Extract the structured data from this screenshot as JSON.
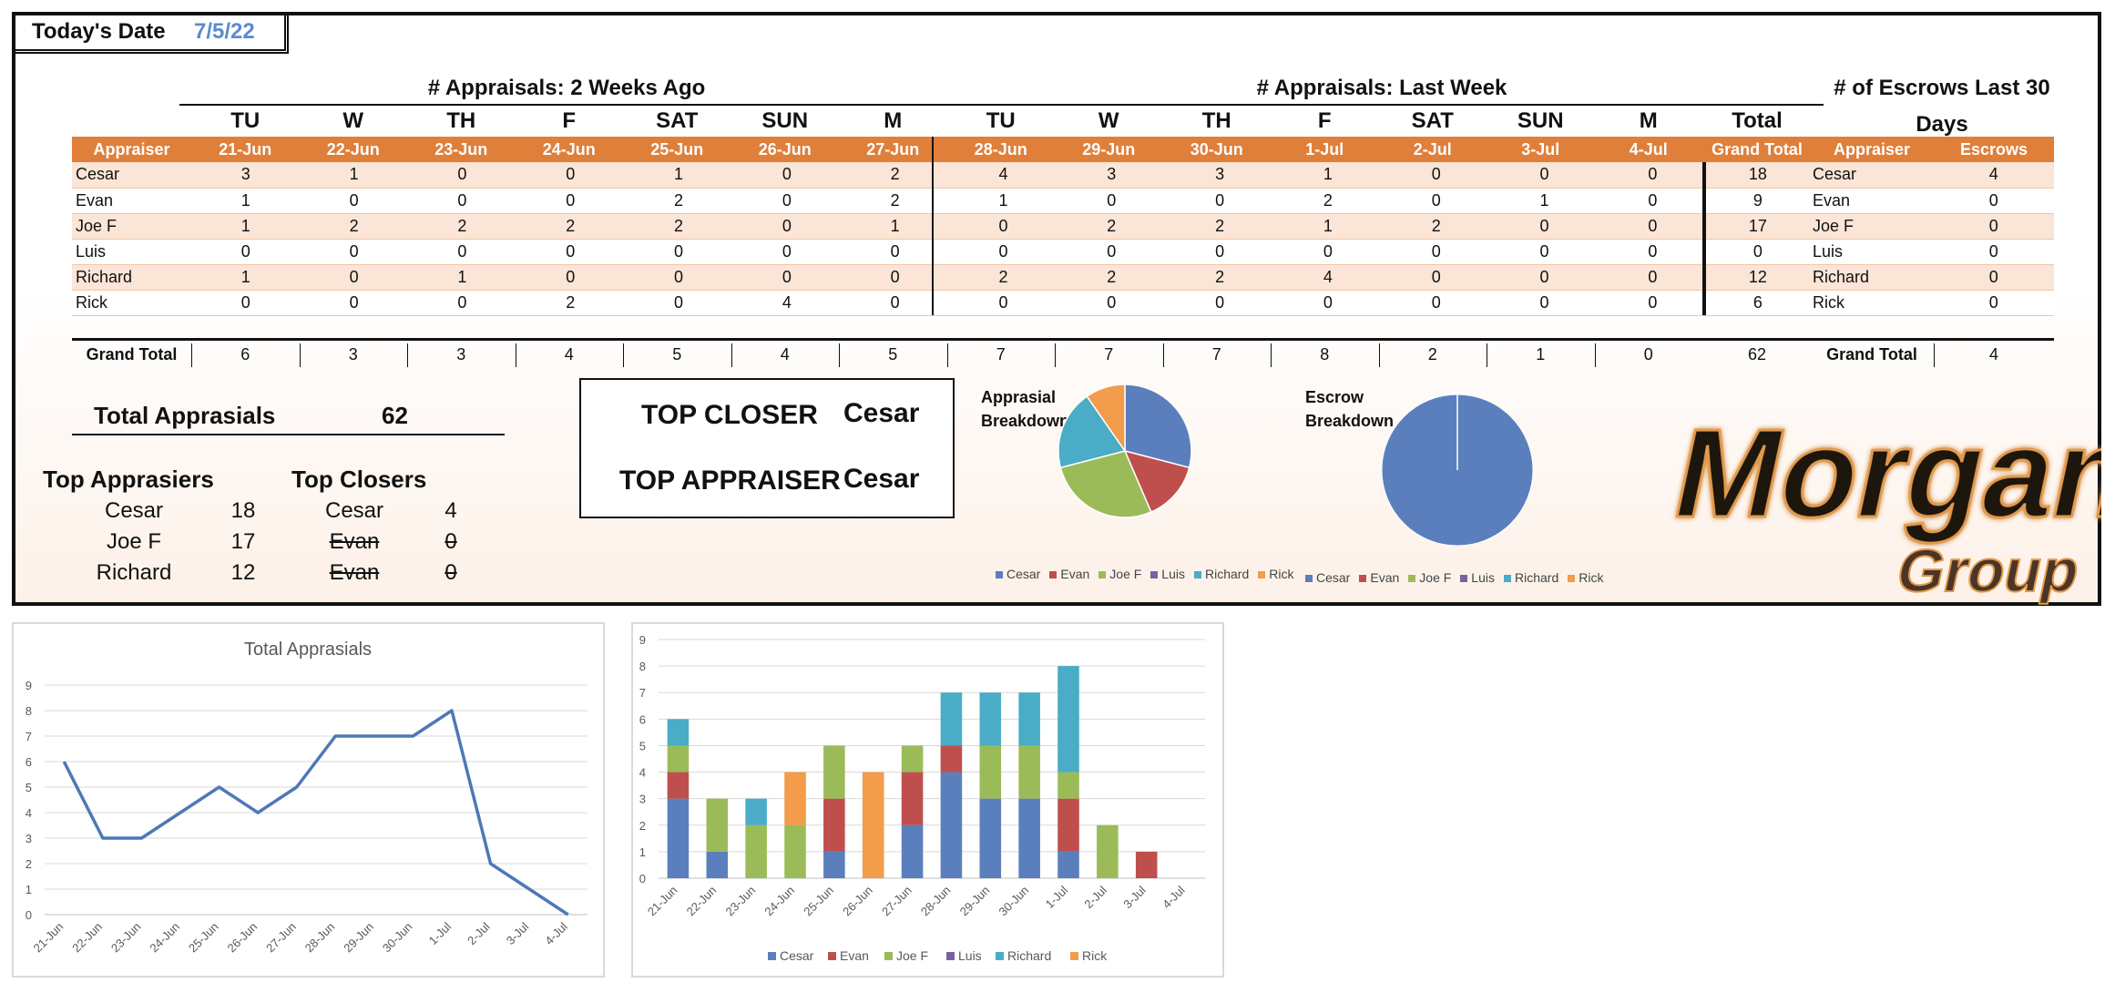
{
  "header": {
    "date_label": "Today's Date",
    "date_value": "7/5/22"
  },
  "sections": {
    "two_weeks": "# Appraisals: 2 Weeks Ago",
    "last_week": "# Appraisals: Last Week",
    "escrows": "# of Escrows Last 30 Days"
  },
  "days": [
    "TU",
    "W",
    "TH",
    "F",
    "SAT",
    "SUN",
    "M",
    "TU",
    "W",
    "TH",
    "F",
    "SAT",
    "SUN",
    "M"
  ],
  "total_label": "Total",
  "header_row": {
    "appraiser": "Appraiser",
    "dates": [
      "21-Jun",
      "22-Jun",
      "23-Jun",
      "24-Jun",
      "25-Jun",
      "26-Jun",
      "27-Jun",
      "28-Jun",
      "29-Jun",
      "30-Jun",
      "1-Jul",
      "2-Jul",
      "3-Jul",
      "4-Jul"
    ],
    "grand_total": "Grand Total",
    "escrow_appraiser": "Appraiser",
    "escrows": "Escrows"
  },
  "rows": [
    {
      "name": "Cesar",
      "values": [
        3,
        1,
        0,
        0,
        1,
        0,
        2,
        4,
        3,
        3,
        1,
        0,
        0,
        0
      ],
      "total": 18,
      "escrow_name": "Cesar",
      "escrows": 4
    },
    {
      "name": "Evan",
      "values": [
        1,
        0,
        0,
        0,
        2,
        0,
        2,
        1,
        0,
        0,
        2,
        0,
        1,
        0
      ],
      "total": 9,
      "escrow_name": "Evan",
      "escrows": 0
    },
    {
      "name": "Joe F",
      "values": [
        1,
        2,
        2,
        2,
        2,
        0,
        1,
        0,
        2,
        2,
        1,
        2,
        0,
        0
      ],
      "total": 17,
      "escrow_name": "Joe F",
      "escrows": 0
    },
    {
      "name": "Luis",
      "values": [
        0,
        0,
        0,
        0,
        0,
        0,
        0,
        0,
        0,
        0,
        0,
        0,
        0,
        0
      ],
      "total": 0,
      "escrow_name": "Luis",
      "escrows": 0
    },
    {
      "name": "Richard",
      "values": [
        1,
        0,
        1,
        0,
        0,
        0,
        0,
        2,
        2,
        2,
        4,
        0,
        0,
        0
      ],
      "total": 12,
      "escrow_name": "Richard",
      "escrows": 0
    },
    {
      "name": "Rick",
      "values": [
        0,
        0,
        0,
        2,
        0,
        4,
        0,
        0,
        0,
        0,
        0,
        0,
        0,
        0
      ],
      "total": 6,
      "escrow_name": "Rick",
      "escrows": 0
    }
  ],
  "grand_total": {
    "label": "Grand Total",
    "values": [
      6,
      3,
      3,
      4,
      5,
      4,
      5,
      7,
      7,
      7,
      8,
      2,
      1,
      0
    ],
    "total": 62,
    "escrow_label": "Grand Total",
    "escrows": 4
  },
  "summary": {
    "total_label": "Total Apprasials",
    "total_value": "62",
    "top_appraisers_title": "Top Apprasiers",
    "top_appraisers": [
      {
        "name": "Cesar",
        "value": "18"
      },
      {
        "name": "Joe F",
        "value": "17"
      },
      {
        "name": "Richard",
        "value": "12"
      }
    ],
    "top_closers_title": "Top Closers",
    "top_closers": [
      {
        "name": "Cesar",
        "value": "4"
      },
      {
        "name": "Evan",
        "value": "0"
      },
      {
        "name": "Evan",
        "value": "0"
      }
    ]
  },
  "top_box": {
    "closer_label": "TOP CLOSER",
    "closer_value": "Cesar",
    "appraiser_label": "TOP APPRAISER",
    "appraiser_value": "Cesar"
  },
  "pies": {
    "appraisal_title_1": "Apprasial",
    "appraisal_title_2": "Breakdown",
    "escrow_title_1": "Escrow",
    "escrow_title_2": "Breakdown"
  },
  "logo": {
    "line1": "Morgan",
    "line2": "Group"
  },
  "colors": {
    "Cesar": "#5b7fbd",
    "Evan": "#bf4f4d",
    "Joe F": "#9bbb59",
    "Luis": "#7b61a3",
    "Richard": "#4aacc6",
    "Rick": "#f29c4c",
    "header_orange": "#e07f3a",
    "line": "#4e78b5"
  },
  "chart_data": [
    {
      "type": "pie",
      "title": "Apprasial Breakdown",
      "categories": [
        "Cesar",
        "Evan",
        "Joe F",
        "Luis",
        "Richard",
        "Rick"
      ],
      "values": [
        18,
        9,
        17,
        0,
        12,
        6
      ]
    },
    {
      "type": "pie",
      "title": "Escrow Breakdown",
      "categories": [
        "Cesar",
        "Evan",
        "Joe F",
        "Luis",
        "Richard",
        "Rick"
      ],
      "values": [
        4,
        0,
        0,
        0,
        0,
        0
      ]
    },
    {
      "type": "line",
      "title": "Total Apprasials",
      "categories": [
        "21-Jun",
        "22-Jun",
        "23-Jun",
        "24-Jun",
        "25-Jun",
        "26-Jun",
        "27-Jun",
        "28-Jun",
        "29-Jun",
        "30-Jun",
        "1-Jul",
        "2-Jul",
        "3-Jul",
        "4-Jul"
      ],
      "values": [
        6,
        3,
        3,
        4,
        5,
        4,
        5,
        7,
        7,
        7,
        8,
        2,
        1,
        0
      ],
      "ylim": [
        0,
        9
      ]
    },
    {
      "type": "bar",
      "stacked": true,
      "categories": [
        "21-Jun",
        "22-Jun",
        "23-Jun",
        "24-Jun",
        "25-Jun",
        "26-Jun",
        "27-Jun",
        "28-Jun",
        "29-Jun",
        "30-Jun",
        "1-Jul",
        "2-Jul",
        "3-Jul",
        "4-Jul"
      ],
      "ylim": [
        0,
        9
      ],
      "series": [
        {
          "name": "Cesar",
          "values": [
            3,
            1,
            0,
            0,
            1,
            0,
            2,
            4,
            3,
            3,
            1,
            0,
            0,
            0
          ]
        },
        {
          "name": "Evan",
          "values": [
            1,
            0,
            0,
            0,
            2,
            0,
            2,
            1,
            0,
            0,
            2,
            0,
            1,
            0
          ]
        },
        {
          "name": "Joe F",
          "values": [
            1,
            2,
            2,
            2,
            2,
            0,
            1,
            0,
            2,
            2,
            1,
            2,
            0,
            0
          ]
        },
        {
          "name": "Luis",
          "values": [
            0,
            0,
            0,
            0,
            0,
            0,
            0,
            0,
            0,
            0,
            0,
            0,
            0,
            0
          ]
        },
        {
          "name": "Richard",
          "values": [
            1,
            0,
            1,
            0,
            0,
            0,
            0,
            2,
            2,
            2,
            4,
            0,
            0,
            0
          ]
        },
        {
          "name": "Rick",
          "values": [
            0,
            0,
            0,
            2,
            0,
            4,
            0,
            0,
            0,
            0,
            0,
            0,
            0,
            0
          ]
        }
      ]
    }
  ]
}
